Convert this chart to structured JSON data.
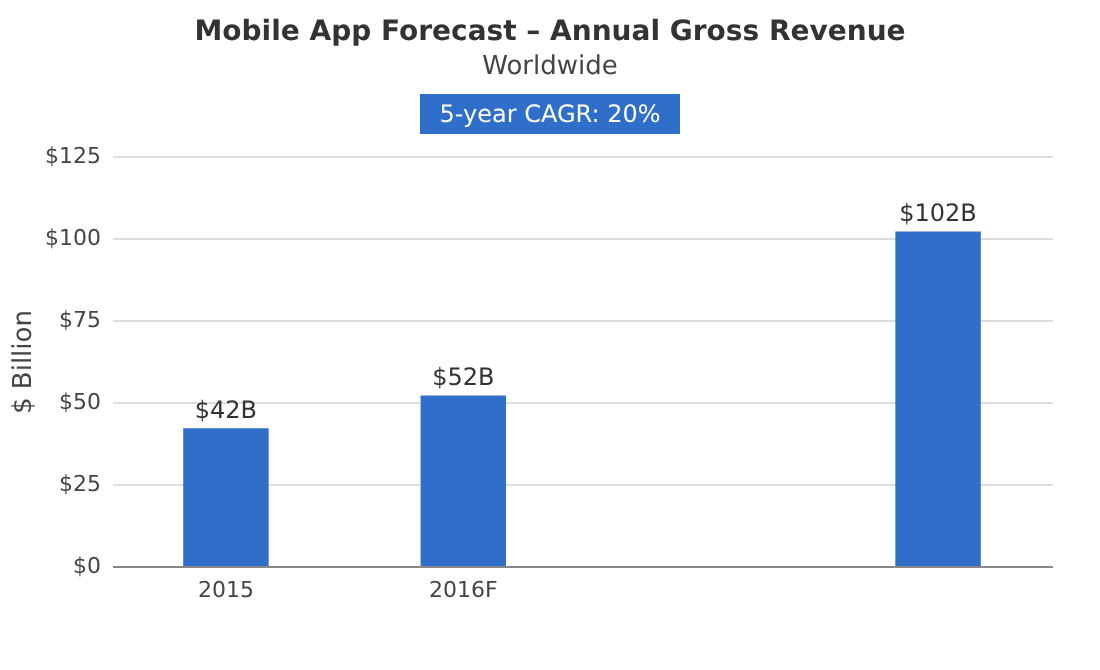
{
  "chart_data": {
    "type": "bar",
    "title": "Mobile App Forecast – Annual Gross Revenue",
    "subtitle": "Worldwide",
    "annotations": [
      "5-year CAGR: 20%"
    ],
    "ylabel": "$ Billion",
    "categories": [
      "2015",
      "2016F",
      null,
      null
    ],
    "values": [
      42,
      52,
      null,
      102
    ],
    "value_labels": [
      "$42B",
      "$52B",
      null,
      "$102B"
    ],
    "color": "#2f6ec9",
    "ylim": [
      0,
      125
    ],
    "yticks": [
      {
        "value": 0,
        "label": "$0"
      },
      {
        "value": 25,
        "label": "$25"
      },
      {
        "value": 50,
        "label": "$50"
      },
      {
        "value": 75,
        "label": "$75"
      },
      {
        "value": 100,
        "label": "$100"
      },
      {
        "value": 125,
        "label": "$125"
      }
    ],
    "grid": "y"
  }
}
